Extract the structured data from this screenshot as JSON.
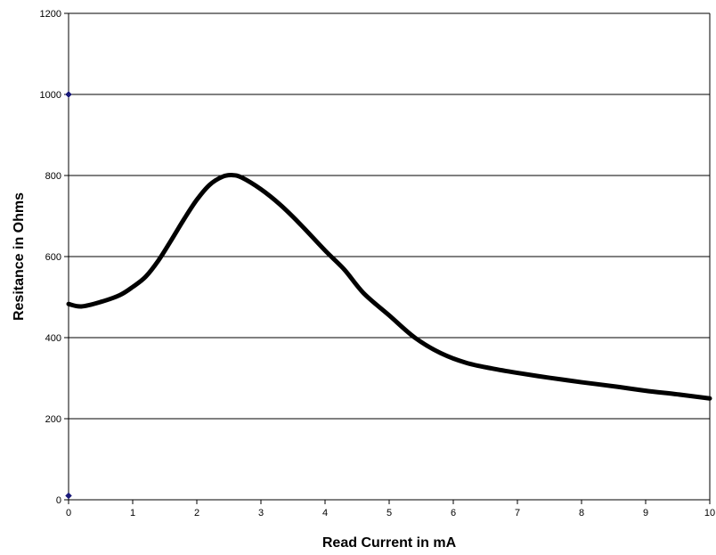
{
  "chart_data": {
    "type": "line",
    "title": "",
    "xlabel": "Read Current in mA",
    "ylabel": "Resitance in Ohms",
    "xlim": [
      0,
      10
    ],
    "ylim": [
      0,
      1200
    ],
    "x_ticks": [
      0,
      1,
      2,
      3,
      4,
      5,
      6,
      7,
      8,
      9,
      10
    ],
    "y_ticks": [
      0,
      200,
      400,
      600,
      800,
      1000,
      1200
    ],
    "grid": "horizontal",
    "legend": "none",
    "series": [
      {
        "color": "#000000",
        "x": [
          0,
          0.2,
          0.5,
          0.8,
          1.0,
          1.2,
          1.4,
          1.6,
          1.8,
          2.0,
          2.2,
          2.4,
          2.55,
          2.7,
          3.0,
          3.3,
          3.6,
          4.0,
          4.3,
          4.6,
          5.0,
          5.4,
          5.8,
          6.2,
          6.6,
          7.0,
          7.5,
          8.0,
          8.5,
          9.0,
          9.5,
          10.0
        ],
        "y": [
          483,
          477,
          488,
          505,
          525,
          550,
          590,
          640,
          692,
          740,
          777,
          797,
          801,
          795,
          766,
          728,
          682,
          615,
          568,
          510,
          455,
          400,
          362,
          338,
          324,
          313,
          301,
          290,
          280,
          269,
          260,
          250
        ]
      }
    ],
    "markers": [
      {
        "x": 0,
        "y": 1000,
        "color": "#1a1a7a"
      },
      {
        "x": 0,
        "y": 10,
        "color": "#1a1a7a"
      }
    ]
  }
}
